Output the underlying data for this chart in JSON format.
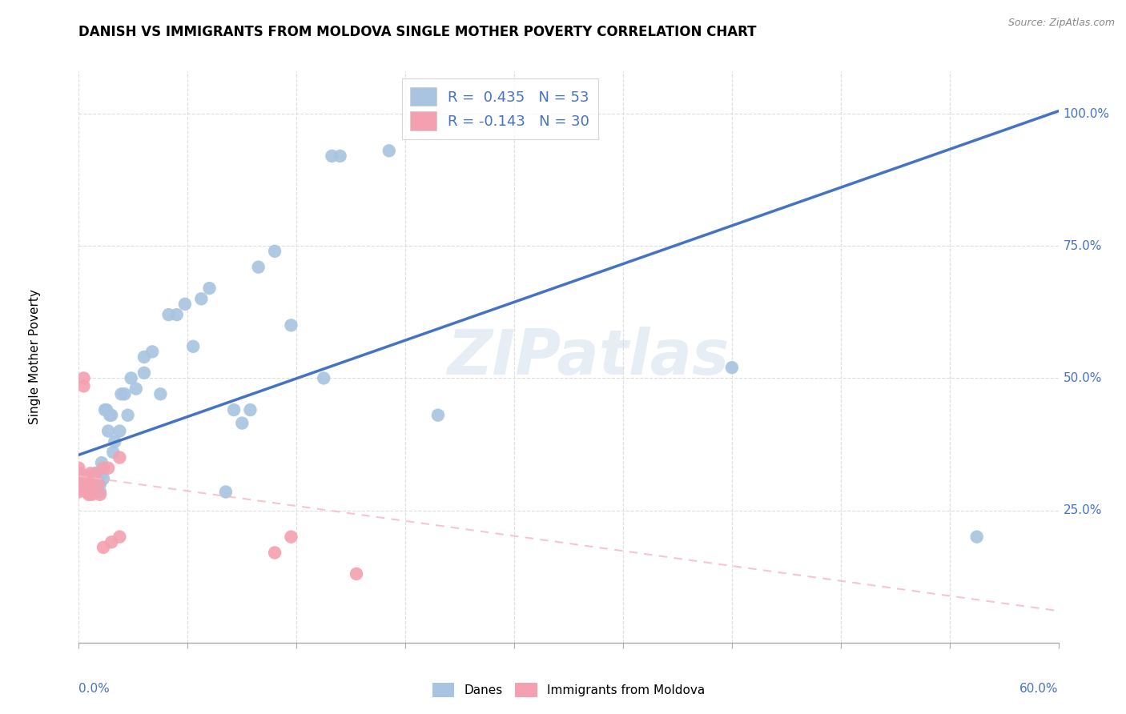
{
  "title": "DANISH VS IMMIGRANTS FROM MOLDOVA SINGLE MOTHER POVERTY CORRELATION CHART",
  "source": "Source: ZipAtlas.com",
  "ylabel": "Single Mother Poverty",
  "watermark": "ZIPatlas",
  "legend_label_danes": "Danes",
  "legend_label_moldova": "Immigrants from Moldova",
  "danes_color": "#a8c4e0",
  "moldova_color": "#f4a0b0",
  "trendline_danes_color": "#4472c4",
  "trendline_moldova_color": "#f4b8c1",
  "xlim": [
    0.0,
    0.6
  ],
  "ylim": [
    0.0,
    1.08
  ],
  "yticks": [
    0.25,
    0.5,
    0.75,
    1.0
  ],
  "ytick_labels": [
    "25.0%",
    "50.0%",
    "75.0%",
    "100.0%"
  ],
  "danes_trendline_x": [
    0.0,
    0.6
  ],
  "danes_trendline_y": [
    0.355,
    1.005
  ],
  "moldova_trendline_x": [
    0.0,
    0.6
  ],
  "moldova_trendline_y": [
    0.315,
    0.06
  ],
  "danes_x": [
    0.001,
    0.003,
    0.005,
    0.007,
    0.008,
    0.009,
    0.01,
    0.01,
    0.011,
    0.012,
    0.012,
    0.013,
    0.013,
    0.014,
    0.014,
    0.015,
    0.016,
    0.017,
    0.018,
    0.019,
    0.02,
    0.021,
    0.022,
    0.025,
    0.026,
    0.028,
    0.03,
    0.032,
    0.035,
    0.04,
    0.04,
    0.045,
    0.05,
    0.055,
    0.06,
    0.065,
    0.07,
    0.075,
    0.08,
    0.09,
    0.095,
    0.1,
    0.105,
    0.11,
    0.12,
    0.13,
    0.15,
    0.155,
    0.16,
    0.19,
    0.22,
    0.4,
    0.55
  ],
  "danes_y": [
    0.315,
    0.315,
    0.31,
    0.315,
    0.295,
    0.315,
    0.3,
    0.32,
    0.31,
    0.295,
    0.315,
    0.3,
    0.285,
    0.32,
    0.34,
    0.31,
    0.44,
    0.44,
    0.4,
    0.43,
    0.43,
    0.36,
    0.38,
    0.4,
    0.47,
    0.47,
    0.43,
    0.5,
    0.48,
    0.51,
    0.54,
    0.55,
    0.47,
    0.62,
    0.62,
    0.64,
    0.56,
    0.65,
    0.67,
    0.285,
    0.44,
    0.415,
    0.44,
    0.71,
    0.74,
    0.6,
    0.5,
    0.92,
    0.92,
    0.93,
    0.43,
    0.52,
    0.2
  ],
  "moldova_x": [
    0.0,
    0.0,
    0.0,
    0.0,
    0.0,
    0.001,
    0.002,
    0.003,
    0.003,
    0.004,
    0.005,
    0.005,
    0.005,
    0.006,
    0.006,
    0.007,
    0.008,
    0.008,
    0.01,
    0.012,
    0.013,
    0.015,
    0.015,
    0.018,
    0.02,
    0.025,
    0.025,
    0.12,
    0.13,
    0.17
  ],
  "moldova_y": [
    0.285,
    0.3,
    0.32,
    0.31,
    0.33,
    0.29,
    0.3,
    0.485,
    0.5,
    0.3,
    0.3,
    0.31,
    0.285,
    0.28,
    0.3,
    0.32,
    0.28,
    0.29,
    0.32,
    0.3,
    0.28,
    0.33,
    0.18,
    0.33,
    0.19,
    0.2,
    0.35,
    0.17,
    0.2,
    0.13
  ]
}
